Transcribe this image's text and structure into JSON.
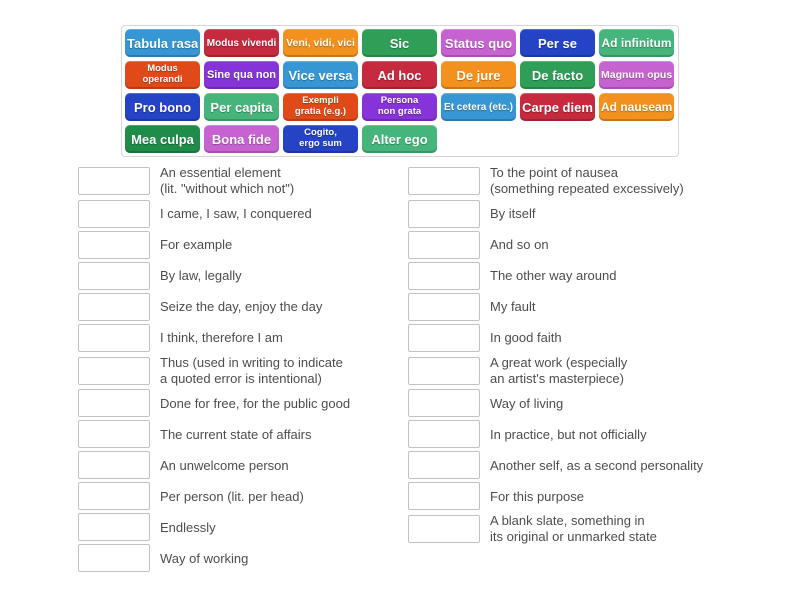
{
  "word_bank": {
    "chips": [
      {
        "label": "Tabula rasa",
        "color": "#3797d4"
      },
      {
        "label": "Modus vivendi",
        "color": "#c52a3e"
      },
      {
        "label": "Veni, vidi, vici",
        "color": "#f2911e"
      },
      {
        "label": "Sic",
        "color": "#2f9e57"
      },
      {
        "label": "Status quo",
        "color": "#c763d0"
      },
      {
        "label": "Per se",
        "color": "#2543c5"
      },
      {
        "label": "Ad infinitum",
        "color": "#45b57b"
      },
      {
        "label": "Modus\noperandi",
        "color": "#e04a18",
        "small": true
      },
      {
        "label": "Sine qua non",
        "color": "#8633d9"
      },
      {
        "label": "Vice versa",
        "color": "#3797d4"
      },
      {
        "label": "Ad hoc",
        "color": "#c52a3e"
      },
      {
        "label": "De jure",
        "color": "#f2911e"
      },
      {
        "label": "De facto",
        "color": "#2f9e57"
      },
      {
        "label": "Magnum opus",
        "color": "#c763d0"
      },
      {
        "label": "Pro bono",
        "color": "#2543c5"
      },
      {
        "label": "Per capita",
        "color": "#45b57b"
      },
      {
        "label": "Exempli\ngratia (e.g.)",
        "color": "#e04a18",
        "small": true
      },
      {
        "label": "Persona\nnon grata",
        "color": "#8633d9",
        "small": true
      },
      {
        "label": "Et cetera (etc.)",
        "color": "#3797d4"
      },
      {
        "label": "Carpe diem",
        "color": "#c52a3e"
      },
      {
        "label": "Ad nauseam",
        "color": "#f2911e"
      },
      {
        "label": "Mea culpa",
        "color": "#1f8c49"
      },
      {
        "label": "Bona fide",
        "color": "#c763d0"
      },
      {
        "label": "Cogito,\nergo sum",
        "color": "#2543c5",
        "small": true
      },
      {
        "label": "Alter ego",
        "color": "#45b57b"
      }
    ]
  },
  "definitions": {
    "left": [
      "An essential element\n(lit. \"without which not\")",
      "I came, I saw, I conquered",
      "For example",
      "By law, legally",
      "Seize the day, enjoy the day",
      "I think, therefore I am",
      "Thus (used in writing to indicate\na quoted error is intentional)",
      "Done for free, for the public good",
      "The current state of affairs",
      "An unwelcome person",
      "Per person (lit. per head)",
      "Endlessly",
      "Way of working"
    ],
    "right": [
      "To the point of nausea\n(something repeated excessively)",
      "By itself",
      "And so on",
      "The other way around",
      "My fault",
      "In good faith",
      "A great work (especially\nan artist's masterpiece)",
      "Way of living",
      "In practice, but not officially",
      "Another self, as a second personality",
      "For this purpose",
      "A blank slate, something in\nits original or unmarked state"
    ]
  }
}
